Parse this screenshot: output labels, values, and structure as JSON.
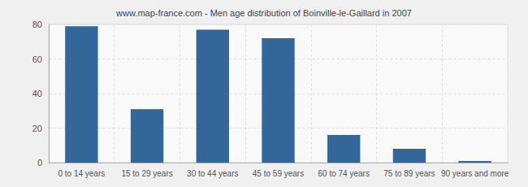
{
  "chart_data": {
    "type": "bar",
    "title": "www.map-france.com - Men age distribution of Boinville-le-Gaillard in 2007",
    "categories": [
      "0 to 14 years",
      "15 to 29 years",
      "30 to 44 years",
      "45 to 59 years",
      "60 to 74 years",
      "75 to 89 years",
      "90 years and more"
    ],
    "values": [
      79,
      31,
      77,
      72,
      16,
      8,
      1
    ],
    "color": "#336699",
    "ylim": [
      0,
      80
    ],
    "yticks": [
      0,
      20,
      40,
      60,
      80
    ],
    "grid": true
  }
}
